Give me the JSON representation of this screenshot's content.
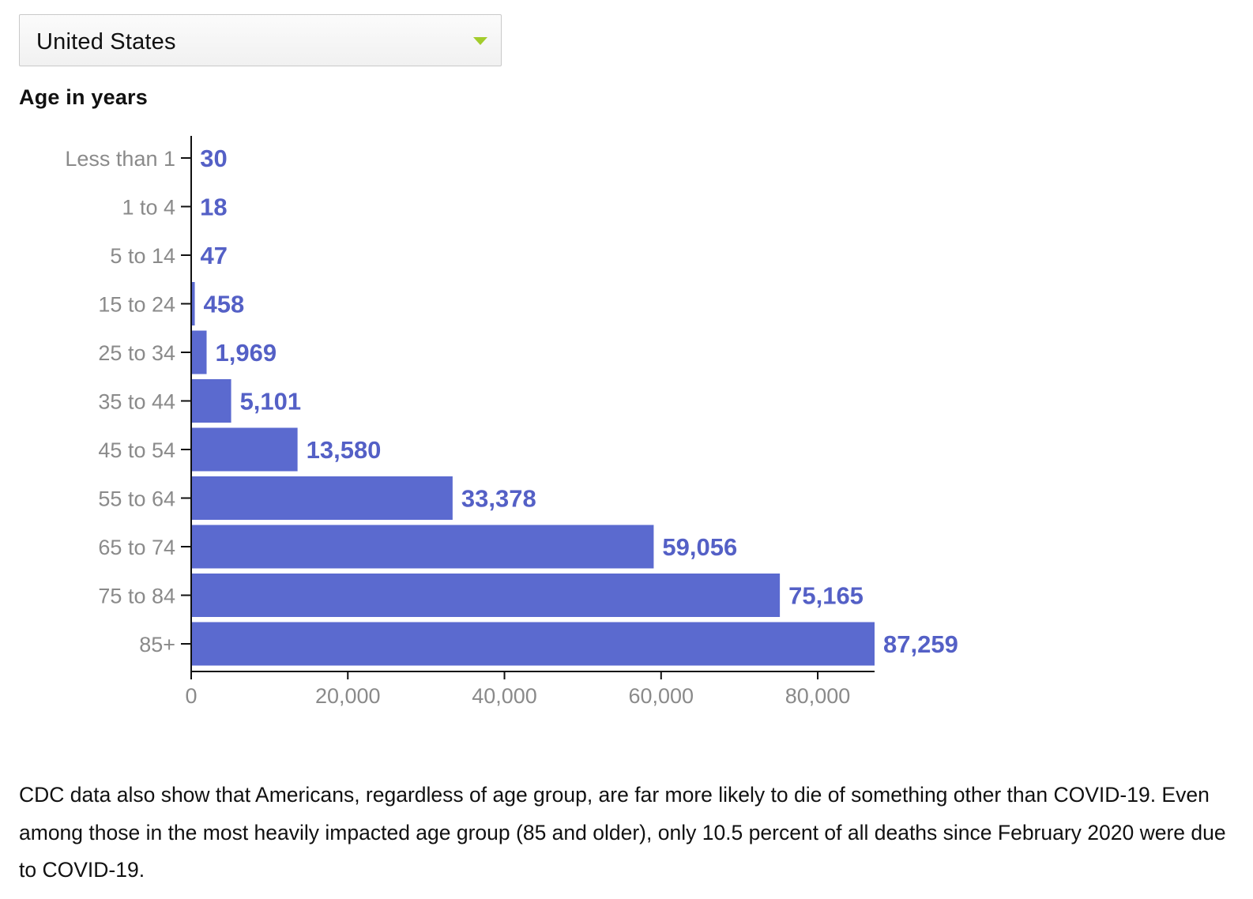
{
  "dropdown": {
    "selected": "United States"
  },
  "chart_data": {
    "type": "bar",
    "orientation": "horizontal",
    "title": "Age in years",
    "categories": [
      "Less than 1",
      "1 to 4",
      "5 to 14",
      "15 to 24",
      "25 to 34",
      "35 to 44",
      "45 to 54",
      "55 to 64",
      "65 to 74",
      "75 to 84",
      "85+"
    ],
    "values": [
      30,
      18,
      47,
      458,
      1969,
      5101,
      13580,
      33378,
      59056,
      75165,
      87259
    ],
    "value_labels": [
      "30",
      "18",
      "47",
      "458",
      "1,969",
      "5,101",
      "13,580",
      "33,378",
      "59,056",
      "75,165",
      "87,259"
    ],
    "x_ticks": [
      0,
      20000,
      40000,
      60000,
      80000
    ],
    "x_tick_labels": [
      "0",
      "20,000",
      "40,000",
      "60,000",
      "80,000"
    ],
    "xlim": [
      0,
      87259
    ],
    "bar_color": "#5b6acf",
    "label_color": "#5460c6"
  },
  "paragraph": {
    "text": "CDC data also show that Americans, regardless of age group, are far more likely to die of something other than COVID-19. Even among those in the most heavily impacted age group (85 and older), only 10.5 percent of all deaths since February 2020 were due to COVID-19."
  }
}
